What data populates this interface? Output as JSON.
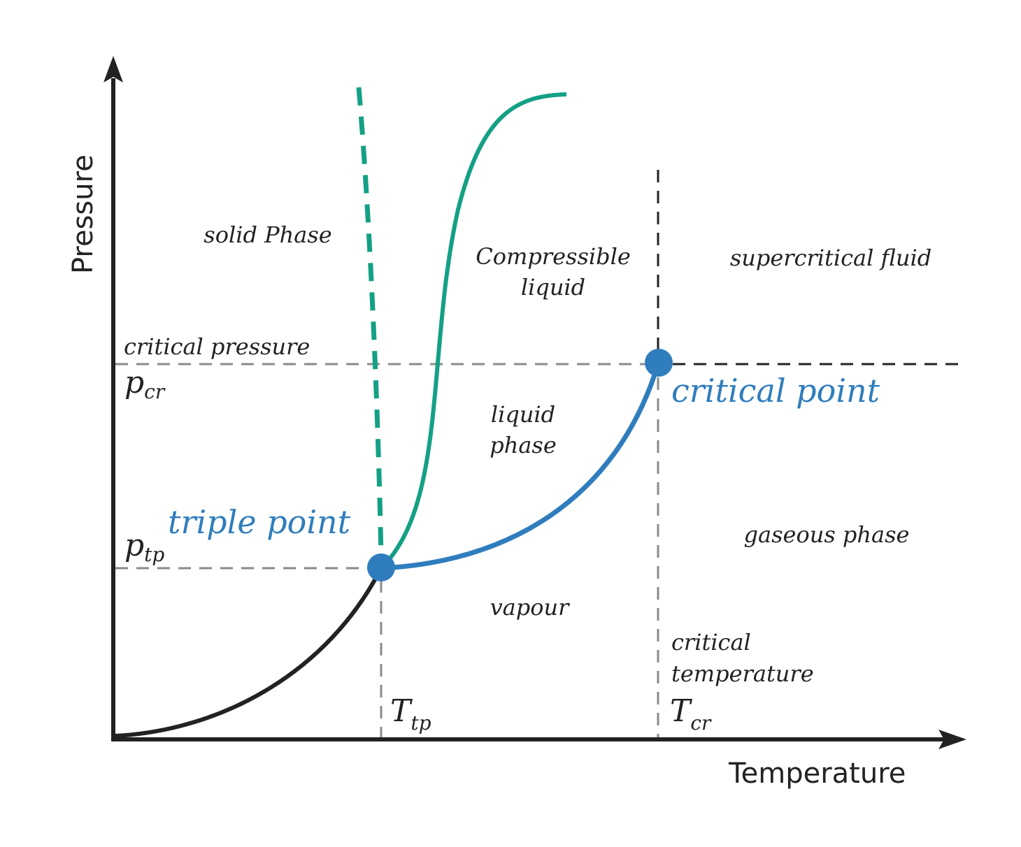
{
  "axes": {
    "x_title": "Temperature",
    "y_title": "Pressure"
  },
  "regions": {
    "solid": "solid Phase",
    "compressible_line1": "Compressible",
    "compressible_line2": "liquid",
    "supercritical": "supercritical fluid",
    "liquid_line1": "liquid",
    "liquid_line2": "phase",
    "gaseous": "gaseous phase",
    "vapour": "vapour"
  },
  "annotations": {
    "critical_pressure": "critical pressure",
    "p_cr_symbol": "p",
    "p_cr_sub": "cr",
    "p_tp_symbol": "p",
    "p_tp_sub": "tp",
    "t_tp_symbol": "T",
    "t_tp_sub": "tp",
    "t_cr_symbol": "T",
    "t_cr_sub": "cr",
    "critical_temperature_line1": "critical",
    "critical_temperature_line2": "temperature"
  },
  "points": {
    "triple": "triple point",
    "critical": "critical point"
  },
  "colors": {
    "axis": "#222222",
    "blue": "#2f7dbd",
    "green": "#14a085",
    "dashed_gray": "#8a8a8a",
    "dashed_dark": "#222222"
  }
}
